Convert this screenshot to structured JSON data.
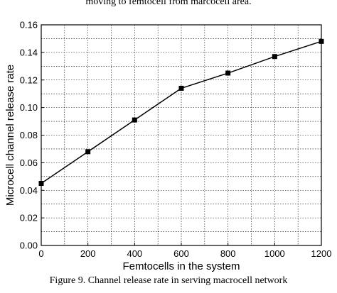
{
  "text": {
    "top_caption": "moving to femtocell from marcocell area.",
    "bottom_caption": "Figure 9. Channel release rate in serving macrocell network"
  },
  "colors": {
    "line": "#000000",
    "grid": "#000000",
    "background": "#ffffff"
  },
  "chart_data": {
    "type": "line",
    "title": "",
    "xlabel": "Femtocells in the system",
    "ylabel": "Microcell channel release rate",
    "xlim": [
      0,
      1200
    ],
    "ylim": [
      0,
      0.16
    ],
    "x_ticks": [
      "0",
      "200",
      "400",
      "600",
      "800",
      "1000",
      "1200"
    ],
    "y_ticks": [
      "0.00",
      "0.02",
      "0.04",
      "0.06",
      "0.08",
      "0.10",
      "0.12",
      "0.14",
      "0.16"
    ],
    "grid": true,
    "legend": "none",
    "marker": "square",
    "series": [
      {
        "x": [
          0,
          200,
          400,
          600,
          800,
          1000,
          1200
        ],
        "values": [
          0.045,
          0.068,
          0.091,
          0.114,
          0.125,
          0.137,
          0.148
        ]
      }
    ]
  }
}
